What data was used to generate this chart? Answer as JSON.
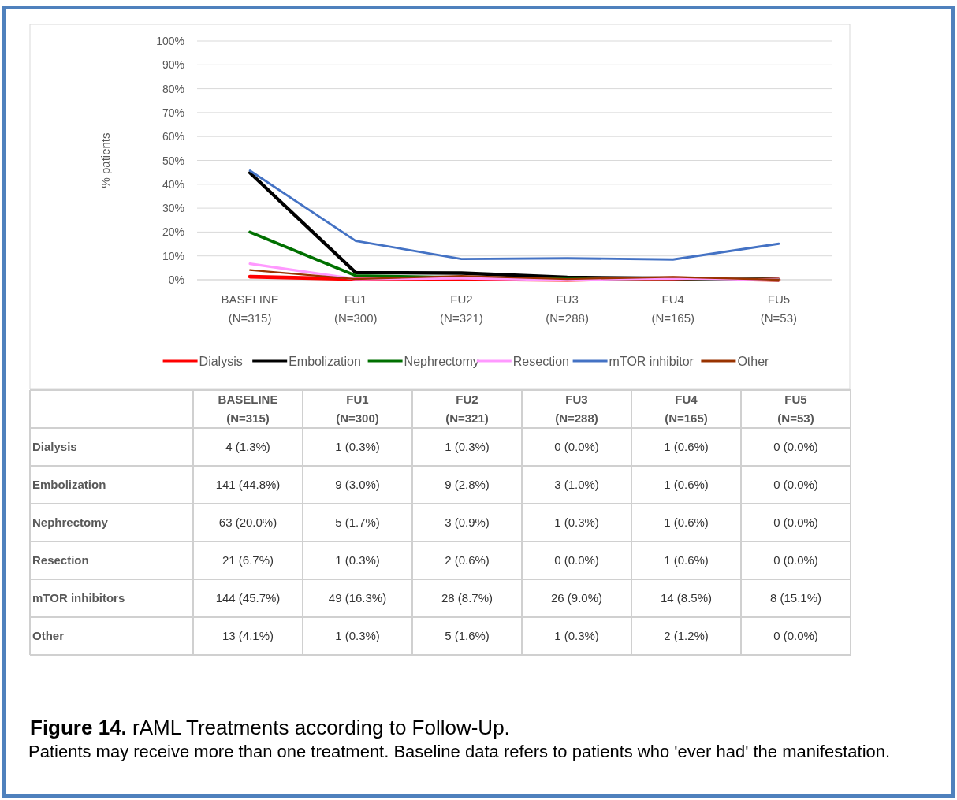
{
  "chart_data": {
    "type": "line",
    "title": "Figure 14. rAML Treatments according to Follow-Up.",
    "subtitle": "Patients may receive more than one treatment. Baseline data refers to patients who 'ever had' the manifestation.",
    "ylabel": "% patients",
    "categories": [
      "BASELINE\n(N=315)",
      "FU1\n(N=300)",
      "FU2\n(N=321)",
      "FU3\n(N=288)",
      "FU4\n(N=165)",
      "FU5\n(N=53)"
    ],
    "ylim": [
      0,
      100
    ],
    "yticks": [
      {
        "value": 0,
        "label": "0%"
      },
      {
        "value": 10,
        "label": "10%"
      },
      {
        "value": 20,
        "label": "20%"
      },
      {
        "value": 30,
        "label": "30%"
      },
      {
        "value": 40,
        "label": "40%"
      },
      {
        "value": 50,
        "label": "50%"
      },
      {
        "value": 60,
        "label": "60%"
      },
      {
        "value": 70,
        "label": "70%"
      },
      {
        "value": 80,
        "label": "80%"
      },
      {
        "value": 90,
        "label": "90%"
      },
      {
        "value": 100,
        "label": "100%"
      }
    ],
    "grid": "y",
    "legend": "bottom",
    "annotations": [
      "Dialysis",
      "Embolization",
      "Nephrectomy",
      "Resection",
      "mTOR inhibitors",
      "Other"
    ],
    "series": [
      {
        "name": "Dialysis",
        "color": "#ff0000",
        "values": [
          1.3,
          0.3,
          0.3,
          0.0,
          0.6,
          0.0
        ],
        "value_labels": [
          "4 (1.3%)",
          "1 (0.3%)",
          "1 (0.3%)",
          "0 (0.0%)",
          "1 (0.6%)",
          "0 (0.0%)"
        ]
      },
      {
        "name": "Embolization",
        "color": "#000000",
        "values": [
          44.8,
          3.0,
          2.8,
          1.0,
          0.6,
          0.0
        ],
        "value_labels": [
          "141 (44.8%)",
          "9 (3.0%)",
          "9 (2.8%)",
          "3 (1.0%)",
          "1 (0.6%)",
          "0 (0.0%)"
        ]
      },
      {
        "name": "Nephrectomy",
        "color": "#007000",
        "values": [
          20.0,
          1.7,
          0.9,
          0.3,
          0.6,
          0.0
        ],
        "value_labels": [
          "63 (20.0%)",
          "5 (1.7%)",
          "3 (0.9%)",
          "1 (0.3%)",
          "1 (0.6%)",
          "0 (0.0%)"
        ]
      },
      {
        "name": "Resection",
        "color": "#ff99ff",
        "values": [
          6.7,
          0.3,
          0.6,
          0.0,
          0.6,
          0.0
        ],
        "value_labels": [
          "21 (6.7%)",
          "1 (0.3%)",
          "2 (0.6%)",
          "0 (0.0%)",
          "1 (0.6%)",
          "0 (0.0%)"
        ]
      },
      {
        "name": "mTOR inhibitor",
        "color": "#4472c4",
        "values": [
          45.7,
          16.3,
          8.7,
          9.0,
          8.5,
          15.1
        ],
        "value_labels": [
          "144 (45.7%)",
          "49 (16.3%)",
          "28 (8.7%)",
          "26 (9.0%)",
          "14 (8.5%)",
          "8 (15.1%)"
        ]
      },
      {
        "name": "Other",
        "color": "#993300",
        "values": [
          4.1,
          0.3,
          1.6,
          0.3,
          1.2,
          0.0
        ],
        "value_labels": [
          "13 (4.1%)",
          "1 (0.3%)",
          "5 (1.6%)",
          "1 (0.3%)",
          "2 (1.2%)",
          "0 (0.0%)"
        ]
      }
    ]
  }
}
